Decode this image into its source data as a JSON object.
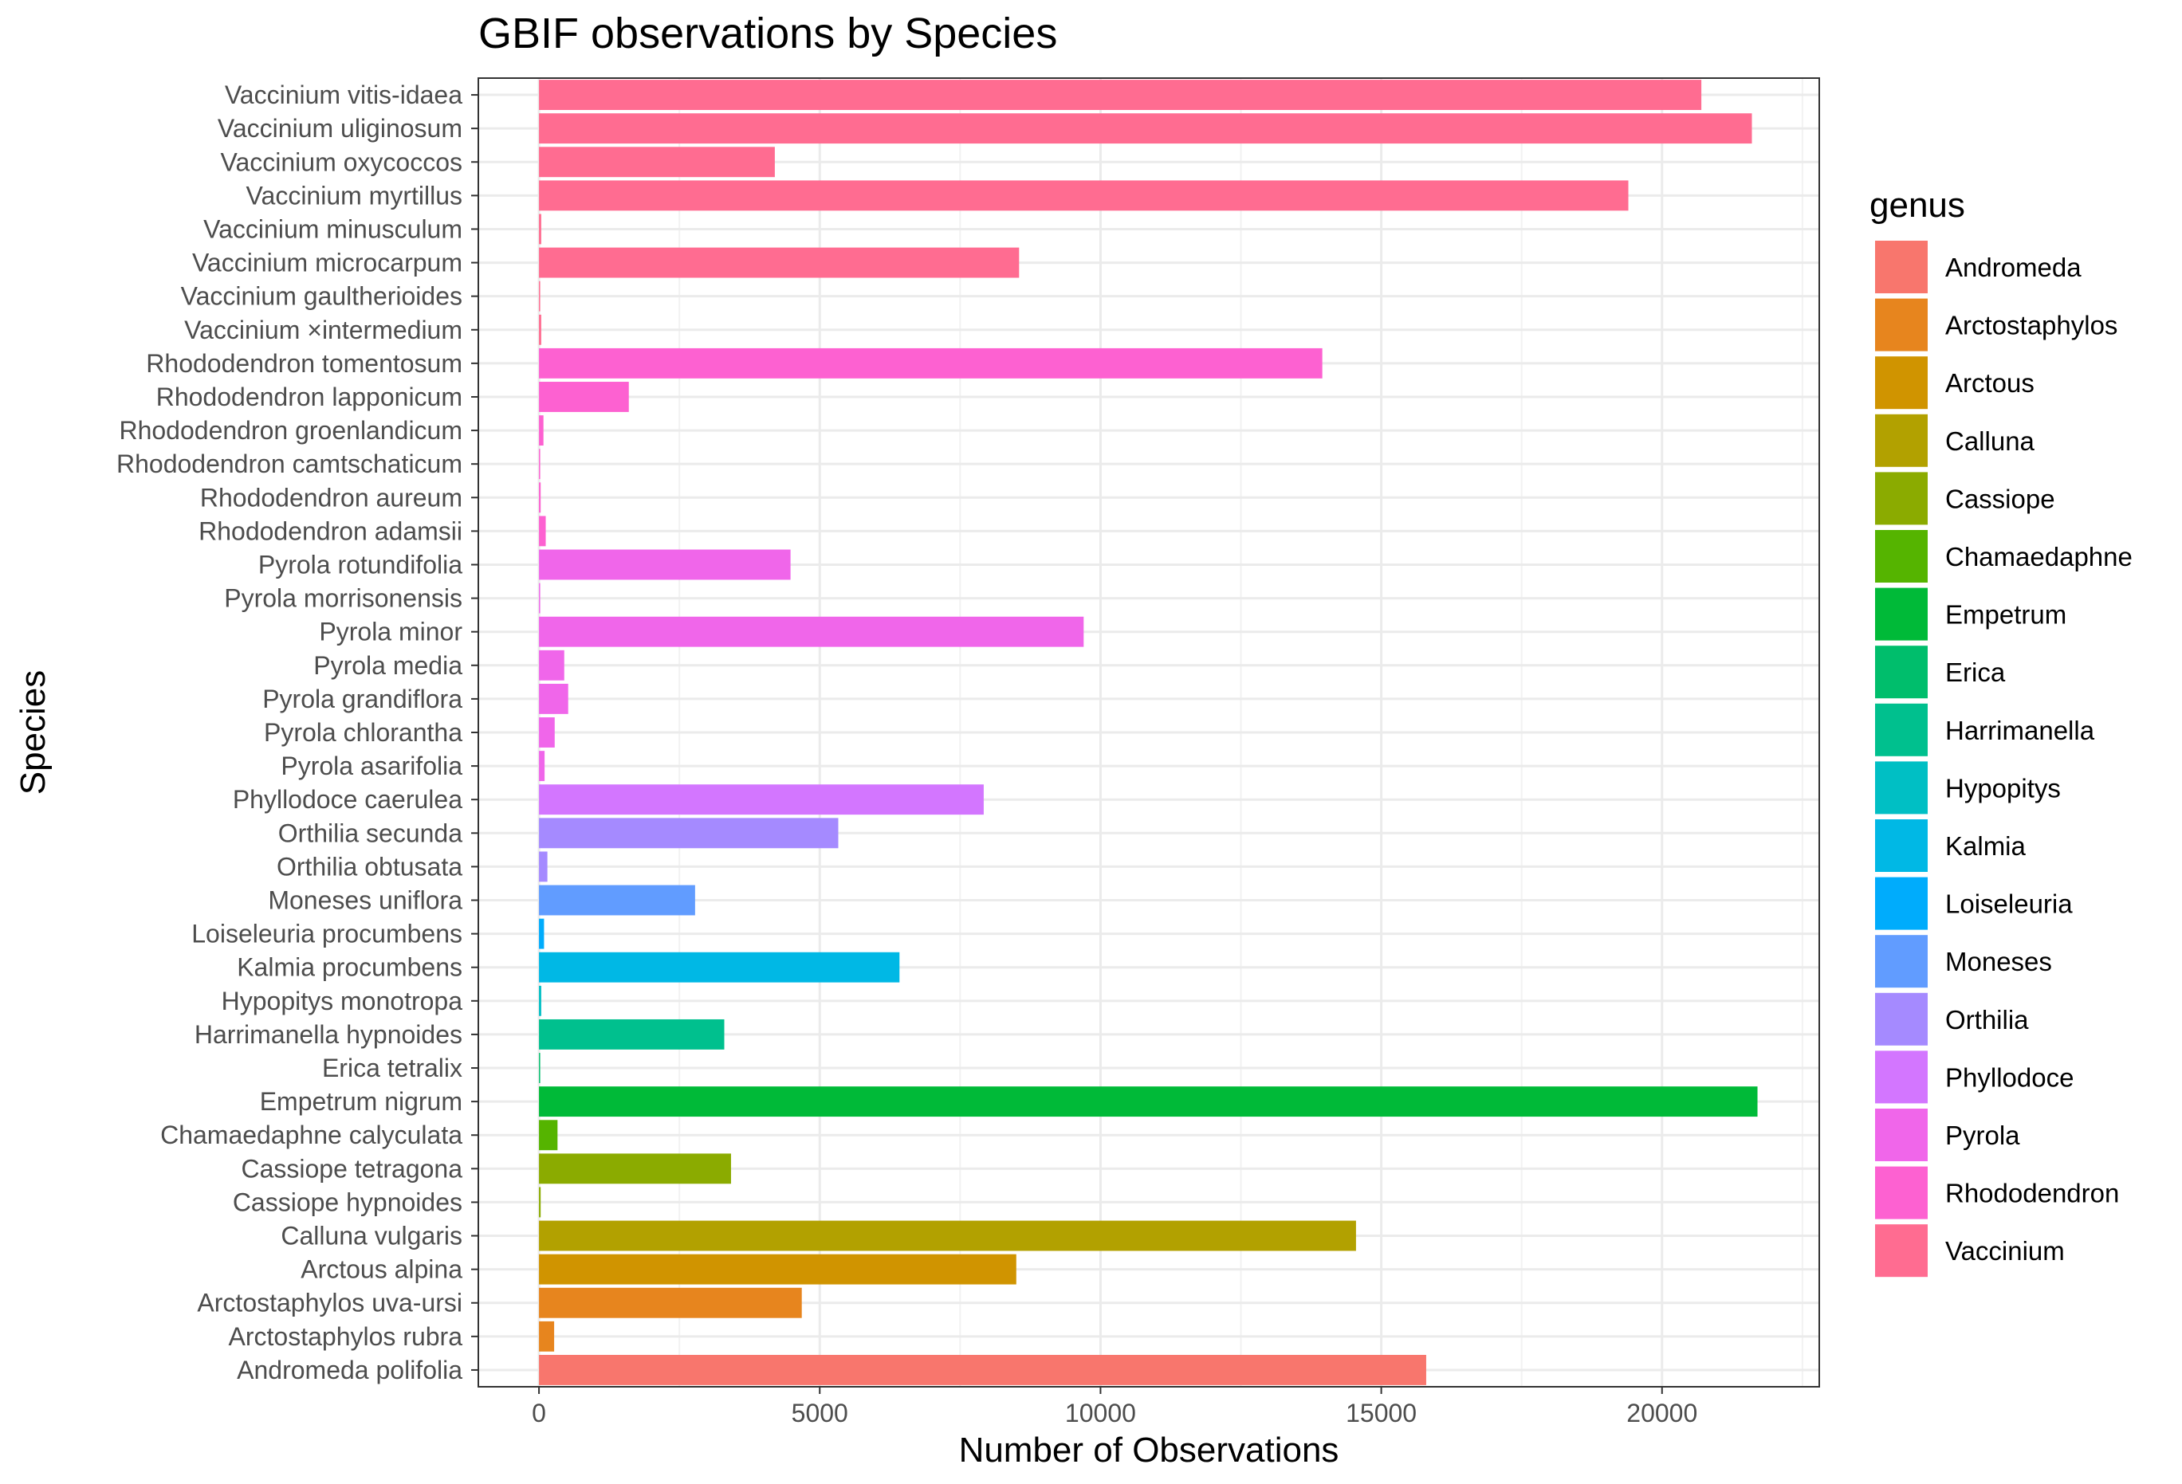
{
  "chart_data": {
    "type": "bar",
    "orientation": "horizontal",
    "title": "GBIF observations by Species",
    "xlabel": "Number of Observations",
    "ylabel": "Species",
    "xlim": [
      -1080,
      22800
    ],
    "x_ticks": [
      0,
      5000,
      10000,
      15000,
      20000
    ],
    "grid": true,
    "legend": {
      "title": "genus",
      "placement": "right"
    },
    "genus_colors": {
      "Andromeda": "#F8766D",
      "Arctostaphylos": "#E7851E",
      "Arctous": "#D09400",
      "Calluna": "#B2A100",
      "Cassiope": "#8BAB00",
      "Chamaedaphne": "#55B400",
      "Empetrum": "#00BA38",
      "Erica": "#00BE6C",
      "Harrimanella": "#00C08E",
      "Hypopitys": "#00BFC4",
      "Kalmia": "#00B8E5",
      "Loiseleuria": "#00ACFC",
      "Moneses": "#619CFF",
      "Orthilia": "#A58AFF",
      "Phyllodoce": "#D376FF",
      "Pyrola": "#F066EA",
      "Rhododendron": "#FD61D1",
      "Vaccinium": "#FF6C91"
    },
    "categories": [
      "Vaccinium vitis-idaea",
      "Vaccinium uliginosum",
      "Vaccinium oxycoccos",
      "Vaccinium myrtillus",
      "Vaccinium minusculum",
      "Vaccinium microcarpum",
      "Vaccinium gaultherioides",
      "Vaccinium ×intermedium",
      "Rhododendron tomentosum",
      "Rhododendron lapponicum",
      "Rhododendron groenlandicum",
      "Rhododendron camtschaticum",
      "Rhododendron aureum",
      "Rhododendron adamsii",
      "Pyrola rotundifolia",
      "Pyrola morrisonensis",
      "Pyrola minor",
      "Pyrola media",
      "Pyrola grandiflora",
      "Pyrola chlorantha",
      "Pyrola asarifolia",
      "Phyllodoce caerulea",
      "Orthilia secunda",
      "Orthilia obtusata",
      "Moneses uniflora",
      "Loiseleuria procumbens",
      "Kalmia procumbens",
      "Hypopitys monotropa",
      "Harrimanella hypnoides",
      "Erica tetralix",
      "Empetrum nigrum",
      "Chamaedaphne calyculata",
      "Cassiope tetragona",
      "Cassiope hypnoides",
      "Calluna vulgaris",
      "Arctous alpina",
      "Arctostaphylos uva-ursi",
      "Arctostaphylos rubra",
      "Andromeda polifolia"
    ],
    "genus": [
      "Vaccinium",
      "Vaccinium",
      "Vaccinium",
      "Vaccinium",
      "Vaccinium",
      "Vaccinium",
      "Vaccinium",
      "Vaccinium",
      "Rhododendron",
      "Rhododendron",
      "Rhododendron",
      "Rhododendron",
      "Rhododendron",
      "Rhododendron",
      "Pyrola",
      "Pyrola",
      "Pyrola",
      "Pyrola",
      "Pyrola",
      "Pyrola",
      "Pyrola",
      "Phyllodoce",
      "Orthilia",
      "Orthilia",
      "Moneses",
      "Loiseleuria",
      "Kalmia",
      "Hypopitys",
      "Harrimanella",
      "Erica",
      "Empetrum",
      "Chamaedaphne",
      "Cassiope",
      "Cassiope",
      "Calluna",
      "Arctous",
      "Arctostaphylos",
      "Arctostaphylos",
      "Andromeda"
    ],
    "values": [
      20700,
      21600,
      4200,
      19400,
      40,
      8550,
      20,
      40,
      13950,
      1600,
      80,
      10,
      30,
      120,
      4480,
      10,
      9700,
      450,
      520,
      280,
      100,
      7920,
      5330,
      150,
      2780,
      90,
      6420,
      40,
      3300,
      20,
      21700,
      330,
      3420,
      30,
      14550,
      8500,
      4680,
      270,
      15800
    ]
  }
}
